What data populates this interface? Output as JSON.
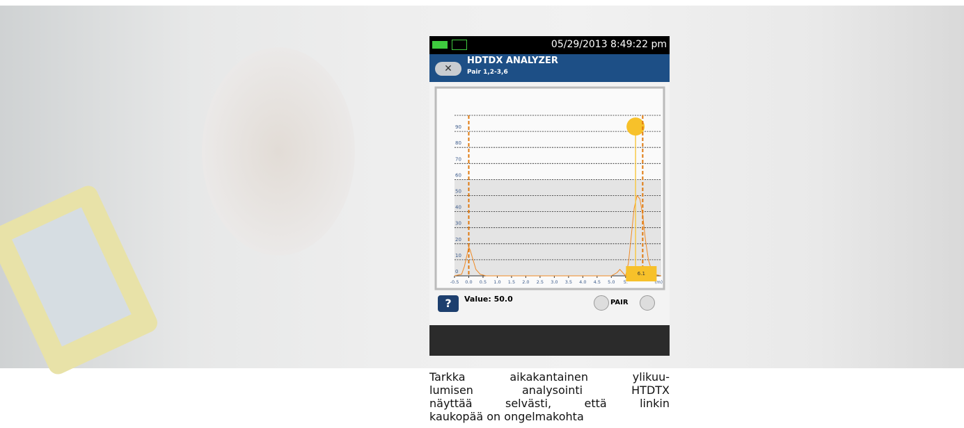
{
  "status": {
    "datetime": "05/29/2013 8:49:22 pm"
  },
  "header": {
    "title": "HDTDX ANALYZER",
    "subtitle": "Pair 1,2-3,6"
  },
  "chart_data": {
    "type": "line",
    "x": [
      -0.5,
      -0.25,
      -0.15,
      -0.05,
      0.0,
      0.05,
      0.15,
      0.25,
      0.4,
      0.6,
      1.0,
      2.0,
      3.0,
      4.0,
      5.0,
      5.2,
      5.3,
      5.4,
      5.5,
      5.6,
      5.7,
      5.8,
      5.9,
      6.0,
      6.1,
      6.2,
      6.3,
      6.4,
      6.5,
      6.75
    ],
    "series": [
      {
        "color": "#f08a24",
        "values": [
          0,
          1,
          6,
          14,
          18,
          16,
          10,
          4,
          1,
          0,
          0,
          0,
          0,
          0,
          0,
          2,
          4,
          2,
          0,
          8,
          25,
          42,
          50,
          48,
          38,
          22,
          10,
          4,
          1,
          0
        ]
      }
    ],
    "xlim": [
      -0.5,
      6.75
    ],
    "ylim": [
      0,
      100
    ],
    "xticks": [
      -0.5,
      {
        "value": 0,
        "label": "0.0"
      },
      0.5,
      {
        "value": 1,
        "label": "1.0"
      },
      1.5,
      {
        "value": 2,
        "label": "2.0"
      },
      2.5,
      {
        "value": 3,
        "label": "3.0"
      },
      3.5,
      {
        "value": 4,
        "label": "4.0"
      },
      4.5,
      {
        "value": 5,
        "label": "5.0"
      },
      {
        "value": 5.5,
        "label": "5."
      }
    ],
    "yticks": [
      0,
      10,
      20,
      30,
      40,
      50,
      60,
      70,
      80,
      90,
      {
        "value": 100,
        "label": ""
      }
    ],
    "x_unit": "(m)",
    "shaded_band": [
      0,
      60
    ],
    "cursors": [
      0,
      6.1
    ],
    "cursor_label": 6.1,
    "marker": {
      "x": 5.85,
      "y": 93
    },
    "grid": true
  },
  "footer": {
    "help": "?",
    "value_text": "Value: 50.0",
    "pair": "PAIR"
  },
  "caption": {
    "lines": [
      "Tarkka aikakantainen ylikuu-",
      "lumisen analysointi HTDTX",
      "näyttää selvästi, että linkin",
      "kaukopää on ongelmakohta"
    ]
  }
}
